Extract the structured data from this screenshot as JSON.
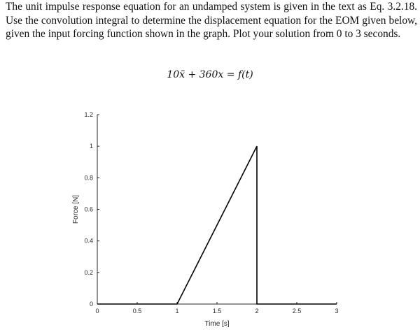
{
  "problem": {
    "text": "The unit impulse response equation for an undamped system is given in the text as Eq. 3.2.18. Use the convolution integral to determine the displacement equation for the EOM given below, given the input forcing function shown in the graph. Plot your solution from 0 to 3 seconds."
  },
  "equation": {
    "lhs": "10ẍ + 360x",
    "equals": "=",
    "rhs": "f(t)"
  },
  "chart_data": {
    "type": "line",
    "xlabel": "Time [s]",
    "ylabel": "Force [N]",
    "xlim": [
      0,
      3
    ],
    "ylim": [
      0,
      1.2
    ],
    "xticks": [
      "0",
      "0.5",
      "1",
      "1.5",
      "2",
      "2.5",
      "3"
    ],
    "yticks": [
      "0",
      "0.2",
      "0.4",
      "0.6",
      "0.8",
      "1",
      "1.2"
    ],
    "grid": false,
    "series": [
      {
        "x": [
          0,
          1,
          2,
          2,
          3
        ],
        "y": [
          0,
          0,
          1,
          0,
          0
        ],
        "color": "#000000"
      }
    ]
  }
}
